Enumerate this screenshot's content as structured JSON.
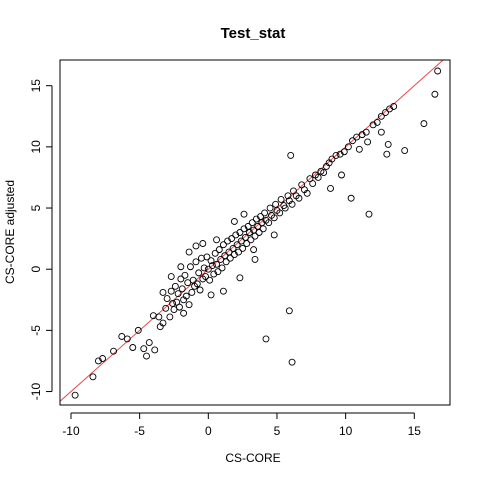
{
  "chart_data": {
    "type": "scatter",
    "title": "Test_stat",
    "xlabel": "CS-CORE",
    "ylabel": "CS-CORE adjusted",
    "xlim": [
      -10.8,
      17.6
    ],
    "ylim": [
      -11.1,
      17.1
    ],
    "xticks": [
      -10,
      -5,
      0,
      5,
      10,
      15
    ],
    "yticks": [
      -10,
      -5,
      0,
      5,
      10,
      15
    ],
    "grid": false,
    "reference_line": {
      "slope": 1,
      "intercept": 0,
      "color": "#e8474b"
    },
    "point_color": "#000000",
    "points": [
      [
        -9.7,
        -10.3
      ],
      [
        -8.4,
        -8.8
      ],
      [
        -8.0,
        -7.5
      ],
      [
        -7.7,
        -7.3
      ],
      [
        -6.9,
        -6.7
      ],
      [
        -6.3,
        -5.5
      ],
      [
        -5.9,
        -5.7
      ],
      [
        -5.5,
        -6.4
      ],
      [
        -5.1,
        -5.0
      ],
      [
        -4.7,
        -6.5
      ],
      [
        -4.5,
        -7.1
      ],
      [
        -4.3,
        -6.0
      ],
      [
        -4.0,
        -3.8
      ],
      [
        -3.9,
        -6.6
      ],
      [
        -3.6,
        -3.9
      ],
      [
        -3.5,
        -4.7
      ],
      [
        -3.3,
        -4.4
      ],
      [
        -3.1,
        -3.2
      ],
      [
        -3.0,
        -2.4
      ],
      [
        -2.8,
        -3.9
      ],
      [
        -2.7,
        -1.8
      ],
      [
        -2.6,
        -2.8
      ],
      [
        -2.5,
        -3.3
      ],
      [
        -2.4,
        -1.4
      ],
      [
        -2.3,
        -2.7
      ],
      [
        -2.2,
        -2.0
      ],
      [
        -2.1,
        -3.1
      ],
      [
        -2.0,
        -0.8
      ],
      [
        -1.9,
        -1.6
      ],
      [
        -1.8,
        -2.5
      ],
      [
        -1.7,
        -0.5
      ],
      [
        -1.6,
        -2.2
      ],
      [
        -1.5,
        -1.1
      ],
      [
        -1.4,
        -2.9
      ],
      [
        -1.3,
        0.2
      ],
      [
        -1.2,
        -1.9
      ],
      [
        -1.1,
        -0.9
      ],
      [
        -1.0,
        -1.4
      ],
      [
        -0.9,
        0.6
      ],
      [
        -0.8,
        -1.2
      ],
      [
        -0.7,
        -0.3
      ],
      [
        -0.6,
        -1.7
      ],
      [
        -0.5,
        0.9
      ],
      [
        -0.4,
        -0.8
      ],
      [
        -0.3,
        0.1
      ],
      [
        -0.2,
        -0.6
      ],
      [
        -0.1,
        1.0
      ],
      [
        0.0,
        0.0
      ],
      [
        0.1,
        -0.9
      ],
      [
        0.2,
        0.7
      ],
      [
        0.3,
        0.3
      ],
      [
        0.4,
        -0.4
      ],
      [
        0.5,
        1.3
      ],
      [
        0.6,
        0.4
      ],
      [
        0.7,
        -0.2
      ],
      [
        0.8,
        1.6
      ],
      [
        0.9,
        0.8
      ],
      [
        1.0,
        0.1
      ],
      [
        1.1,
        2.0
      ],
      [
        1.2,
        1.1
      ],
      [
        1.3,
        0.6
      ],
      [
        1.4,
        2.3
      ],
      [
        1.5,
        1.4
      ],
      [
        1.6,
        0.9
      ],
      [
        1.7,
        2.5
      ],
      [
        1.8,
        1.7
      ],
      [
        1.9,
        1.2
      ],
      [
        2.0,
        2.8
      ],
      [
        2.1,
        2.0
      ],
      [
        2.2,
        1.4
      ],
      [
        2.3,
        3.0
      ],
      [
        2.4,
        2.3
      ],
      [
        2.5,
        1.7
      ],
      [
        2.6,
        3.3
      ],
      [
        2.7,
        2.6
      ],
      [
        2.8,
        2.1
      ],
      [
        2.9,
        3.5
      ],
      [
        3.0,
        3.0
      ],
      [
        3.1,
        2.4
      ],
      [
        3.2,
        3.8
      ],
      [
        3.3,
        3.2
      ],
      [
        3.4,
        2.7
      ],
      [
        3.5,
        4.1
      ],
      [
        3.6,
        3.5
      ],
      [
        3.7,
        3.0
      ],
      [
        3.8,
        4.3
      ],
      [
        3.9,
        3.8
      ],
      [
        4.0,
        3.3
      ],
      [
        4.1,
        4.6
      ],
      [
        4.2,
        4.0
      ],
      [
        4.4,
        3.8
      ],
      [
        4.5,
        5.0
      ],
      [
        4.6,
        4.4
      ],
      [
        4.8,
        4.2
      ],
      [
        4.9,
        5.3
      ],
      [
        5.0,
        4.8
      ],
      [
        5.2,
        4.6
      ],
      [
        5.3,
        5.7
      ],
      [
        5.5,
        5.2
      ],
      [
        5.6,
        5.0
      ],
      [
        5.8,
        6.0
      ],
      [
        5.9,
        5.6
      ],
      [
        6.1,
        5.3
      ],
      [
        6.2,
        6.4
      ],
      [
        6.4,
        6.0
      ],
      [
        6.6,
        5.8
      ],
      [
        6.8,
        6.9
      ],
      [
        7.0,
        6.5
      ],
      [
        7.2,
        6.2
      ],
      [
        7.4,
        7.4
      ],
      [
        7.6,
        7.0
      ],
      [
        7.8,
        7.7
      ],
      [
        8.0,
        7.5
      ],
      [
        8.2,
        8.0
      ],
      [
        8.4,
        7.9
      ],
      [
        8.6,
        8.4
      ],
      [
        8.8,
        8.7
      ],
      [
        9.0,
        9.0
      ],
      [
        9.3,
        9.3
      ],
      [
        9.6,
        9.4
      ],
      [
        9.9,
        9.6
      ],
      [
        10.2,
        10.0
      ],
      [
        10.5,
        10.5
      ],
      [
        10.8,
        10.8
      ],
      [
        11.2,
        11.0
      ],
      [
        11.5,
        11.2
      ],
      [
        12.0,
        11.8
      ],
      [
        12.3,
        12.0
      ],
      [
        12.6,
        12.5
      ],
      [
        12.9,
        12.8
      ],
      [
        13.2,
        13.1
      ],
      [
        13.5,
        13.3
      ],
      [
        11.0,
        9.8
      ],
      [
        11.6,
        10.4
      ],
      [
        12.6,
        11.2
      ],
      [
        13.0,
        9.4
      ],
      [
        13.1,
        10.2
      ],
      [
        14.3,
        9.7
      ],
      [
        15.7,
        11.9
      ],
      [
        16.5,
        14.3
      ],
      [
        16.7,
        16.2
      ],
      [
        10.4,
        5.8
      ],
      [
        11.7,
        4.5
      ],
      [
        6.0,
        9.3
      ],
      [
        8.9,
        6.6
      ],
      [
        9.7,
        7.7
      ],
      [
        5.9,
        -3.4
      ],
      [
        6.1,
        -7.6
      ],
      [
        4.2,
        -5.7
      ],
      [
        2.3,
        -0.7
      ],
      [
        1.1,
        -1.8
      ],
      [
        3.4,
        0.8
      ],
      [
        -1.4,
        1.4
      ],
      [
        -0.9,
        1.9
      ],
      [
        0.6,
        2.4
      ],
      [
        1.9,
        3.9
      ],
      [
        3.3,
        1.6
      ],
      [
        -2.0,
        0.2
      ],
      [
        -2.7,
        -0.6
      ],
      [
        -3.3,
        -1.9
      ],
      [
        4.8,
        2.8
      ],
      [
        -1.8,
        -3.6
      ],
      [
        0.2,
        -2.1
      ],
      [
        2.6,
        4.5
      ],
      [
        -0.4,
        2.1
      ]
    ]
  }
}
